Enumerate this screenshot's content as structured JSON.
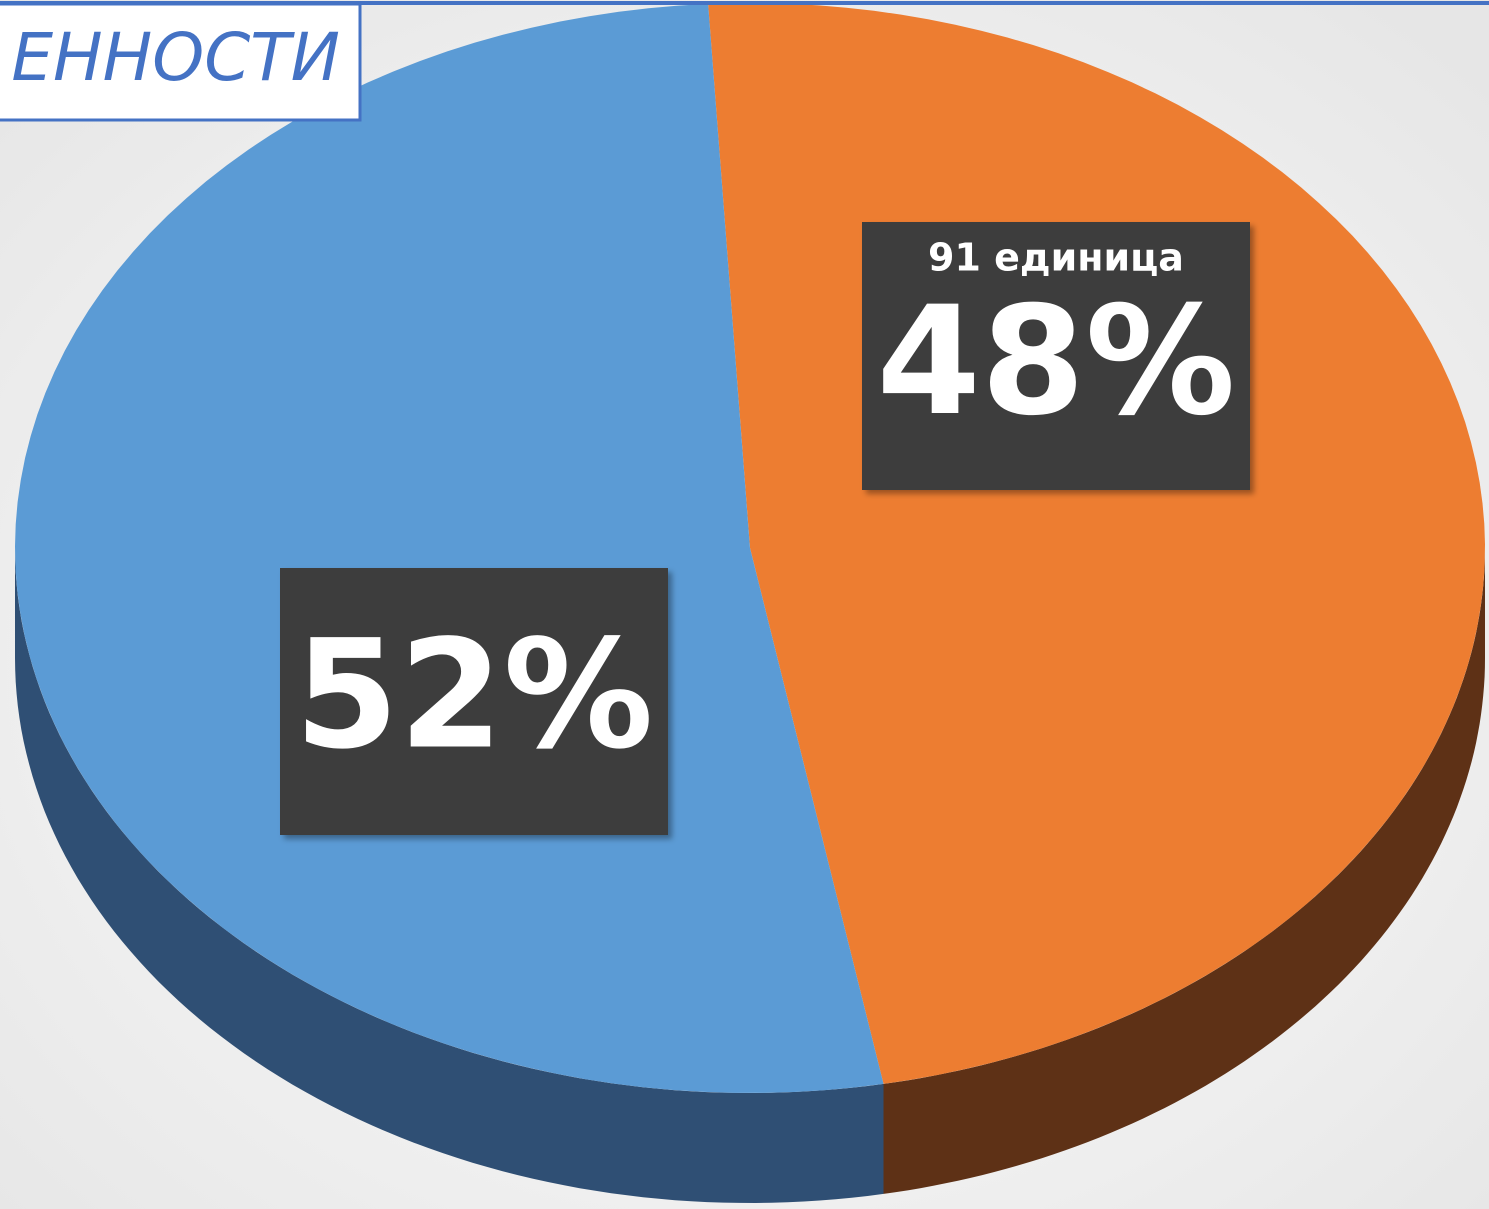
{
  "chart_data": {
    "type": "pie",
    "title": "ЕННОСТИ",
    "categories": [
      null,
      null
    ],
    "values": [
      52,
      48
    ],
    "value_labels": [
      "52%",
      "48%"
    ],
    "detail_labels": [
      null,
      "91 единица"
    ],
    "colors": [
      "#5b9bd5",
      "#ed7d31"
    ],
    "side_colors": [
      "#2f4f74",
      "#5e3116"
    ],
    "three_d": true
  }
}
